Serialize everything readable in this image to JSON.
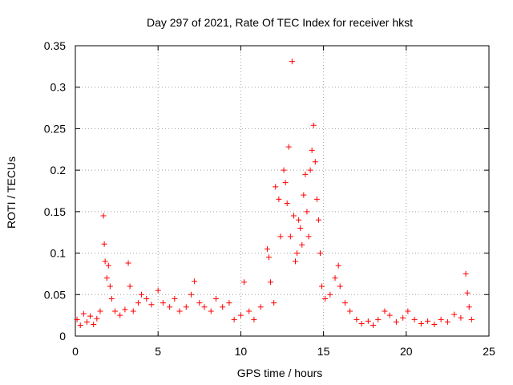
{
  "chart_data": {
    "type": "scatter",
    "title": "Day 297 of 2021, Rate Of TEC Index for receiver hkst",
    "xlabel": "GPS time / hours",
    "ylabel": "ROTI / TECUs",
    "xlim": [
      0,
      25
    ],
    "ylim": [
      0,
      0.35
    ],
    "xticks": [
      0,
      5,
      10,
      15,
      20,
      25
    ],
    "xtick_labels": [
      "0",
      "5",
      "10",
      "15",
      "20",
      "25"
    ],
    "yticks": [
      0,
      0.05,
      0.1,
      0.15,
      0.2,
      0.25,
      0.3,
      0.35
    ],
    "ytick_labels": [
      "0",
      "0.05",
      "0.1",
      "0.15",
      "0.2",
      "0.25",
      "0.3",
      "0.35"
    ],
    "grid": true,
    "marker": "+",
    "marker_color": "#ff0000",
    "series": [
      {
        "name": "ROTI",
        "points": [
          [
            0.1,
            0.02
          ],
          [
            0.3,
            0.013
          ],
          [
            0.5,
            0.027
          ],
          [
            0.7,
            0.017
          ],
          [
            0.9,
            0.024
          ],
          [
            1.1,
            0.014
          ],
          [
            1.3,
            0.021
          ],
          [
            1.5,
            0.03
          ],
          [
            1.7,
            0.145
          ],
          [
            1.75,
            0.111
          ],
          [
            1.8,
            0.09
          ],
          [
            1.9,
            0.07
          ],
          [
            2.0,
            0.085
          ],
          [
            2.1,
            0.06
          ],
          [
            2.2,
            0.045
          ],
          [
            2.4,
            0.03
          ],
          [
            2.7,
            0.025
          ],
          [
            3.0,
            0.032
          ],
          [
            3.2,
            0.088
          ],
          [
            3.3,
            0.06
          ],
          [
            3.5,
            0.03
          ],
          [
            3.8,
            0.04
          ],
          [
            4.0,
            0.05
          ],
          [
            4.3,
            0.045
          ],
          [
            4.6,
            0.038
          ],
          [
            5.0,
            0.055
          ],
          [
            5.3,
            0.04
          ],
          [
            5.7,
            0.035
          ],
          [
            6.0,
            0.045
          ],
          [
            6.3,
            0.03
          ],
          [
            6.7,
            0.035
          ],
          [
            7.0,
            0.05
          ],
          [
            7.2,
            0.066
          ],
          [
            7.5,
            0.04
          ],
          [
            7.8,
            0.035
          ],
          [
            8.2,
            0.03
          ],
          [
            8.5,
            0.045
          ],
          [
            8.9,
            0.035
          ],
          [
            9.3,
            0.04
          ],
          [
            9.6,
            0.02
          ],
          [
            10.0,
            0.025
          ],
          [
            10.2,
            0.065
          ],
          [
            10.5,
            0.03
          ],
          [
            10.8,
            0.02
          ],
          [
            11.2,
            0.035
          ],
          [
            11.6,
            0.105
          ],
          [
            11.7,
            0.095
          ],
          [
            11.8,
            0.065
          ],
          [
            12.0,
            0.04
          ],
          [
            12.1,
            0.18
          ],
          [
            12.3,
            0.165
          ],
          [
            12.4,
            0.12
          ],
          [
            12.6,
            0.2
          ],
          [
            12.7,
            0.185
          ],
          [
            12.8,
            0.16
          ],
          [
            12.9,
            0.228
          ],
          [
            13.0,
            0.12
          ],
          [
            13.1,
            0.331
          ],
          [
            13.2,
            0.145
          ],
          [
            13.3,
            0.09
          ],
          [
            13.4,
            0.1
          ],
          [
            13.5,
            0.14
          ],
          [
            13.6,
            0.13
          ],
          [
            13.7,
            0.11
          ],
          [
            13.8,
            0.17
          ],
          [
            13.9,
            0.195
          ],
          [
            14.0,
            0.15
          ],
          [
            14.1,
            0.12
          ],
          [
            14.2,
            0.2
          ],
          [
            14.3,
            0.224
          ],
          [
            14.4,
            0.254
          ],
          [
            14.5,
            0.21
          ],
          [
            14.6,
            0.165
          ],
          [
            14.7,
            0.14
          ],
          [
            14.8,
            0.1
          ],
          [
            14.9,
            0.06
          ],
          [
            15.1,
            0.045
          ],
          [
            15.4,
            0.05
          ],
          [
            15.7,
            0.07
          ],
          [
            15.9,
            0.085
          ],
          [
            16.0,
            0.06
          ],
          [
            16.3,
            0.04
          ],
          [
            16.6,
            0.03
          ],
          [
            17.0,
            0.02
          ],
          [
            17.3,
            0.015
          ],
          [
            17.7,
            0.018
          ],
          [
            18.0,
            0.013
          ],
          [
            18.3,
            0.02
          ],
          [
            18.7,
            0.03
          ],
          [
            19.0,
            0.025
          ],
          [
            19.4,
            0.017
          ],
          [
            19.8,
            0.022
          ],
          [
            20.1,
            0.03
          ],
          [
            20.5,
            0.02
          ],
          [
            20.9,
            0.015
          ],
          [
            21.3,
            0.018
          ],
          [
            21.7,
            0.014
          ],
          [
            22.1,
            0.02
          ],
          [
            22.5,
            0.017
          ],
          [
            22.9,
            0.026
          ],
          [
            23.3,
            0.022
          ],
          [
            23.6,
            0.075
          ],
          [
            23.7,
            0.052
          ],
          [
            23.8,
            0.035
          ],
          [
            23.95,
            0.02
          ]
        ]
      }
    ]
  }
}
